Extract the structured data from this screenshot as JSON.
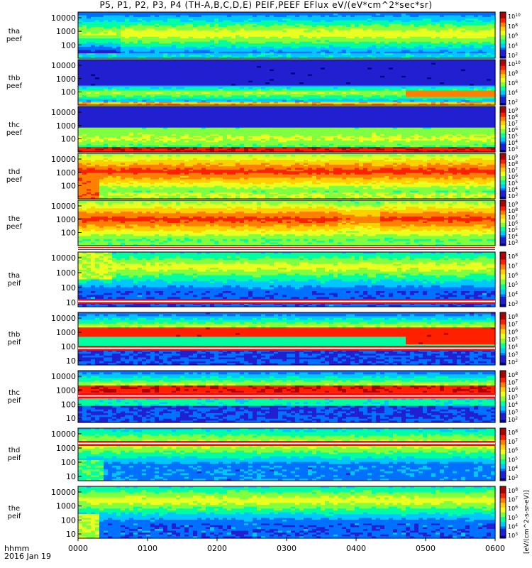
{
  "title": "P5, P1, P2, P3, P4 (TH-A,B,C,D,E) PEIF,PEEF EFlux eV/(eV*cm^2*sec*sr)",
  "footer": {
    "time_label": "hhmm",
    "date_label": "2016 Jan 19"
  },
  "colorbar_unit": "[eV/(cm^2-s-sr-eV)]",
  "chart_data": {
    "type": "heatmap",
    "x_ticks": [
      "0000",
      "0100",
      "0200",
      "0300",
      "0400",
      "0500",
      "0600"
    ],
    "xlim": [
      "00:00",
      "06:00"
    ],
    "panels": [
      {
        "label": [
          "tha",
          "peef"
        ],
        "y_ticks": [
          "10000",
          "1000",
          "100"
        ],
        "cbar_ticks": [
          "10^10",
          "10^8",
          "10^6",
          "10^4",
          "10^2"
        ]
      },
      {
        "label": [
          "thb",
          "peef"
        ],
        "y_ticks": [
          "10000",
          "1000",
          "100"
        ],
        "cbar_ticks": [
          "10^10",
          "10^8",
          "10^6",
          "10^4",
          "10^2"
        ]
      },
      {
        "label": [
          "thc",
          "peef"
        ],
        "y_ticks": [
          "10000",
          "1000",
          "100"
        ],
        "cbar_ticks": [
          "10^9",
          "10^8",
          "10^7",
          "10^6",
          "10^5",
          "10^4",
          "10^3"
        ]
      },
      {
        "label": [
          "thd",
          "peef"
        ],
        "y_ticks": [
          "10000",
          "1000",
          "100"
        ],
        "cbar_ticks": [
          "10^9",
          "10^8",
          "10^7",
          "10^6",
          "10^5",
          "10^4",
          "10^3"
        ]
      },
      {
        "label": [
          "the",
          "peef"
        ],
        "y_ticks": [
          "10000",
          "1000",
          "100"
        ],
        "cbar_ticks": [
          "10^9",
          "10^8",
          "10^7",
          "10^6",
          "10^5",
          "10^4",
          "10^3"
        ]
      },
      {
        "label": [
          "tha",
          "peif"
        ],
        "y_ticks": [
          "10000",
          "1000",
          "100",
          "10"
        ],
        "cbar_ticks": [
          "10^8",
          "10^7",
          "10^6",
          "10^5",
          "10^4",
          "10^3"
        ]
      },
      {
        "label": [
          "thb",
          "peif"
        ],
        "y_ticks": [
          "10000",
          "1000",
          "100",
          "10"
        ],
        "cbar_ticks": [
          "10^8",
          "10^7",
          "10^6",
          "10^5",
          "10^4",
          "10^3",
          "10^2"
        ]
      },
      {
        "label": [
          "thc",
          "peif"
        ],
        "y_ticks": [
          "10000",
          "1000",
          "100",
          "10"
        ],
        "cbar_ticks": [
          "10^8",
          "10^7",
          "10^6",
          "10^5",
          "10^4",
          "10^3",
          "10^2"
        ]
      },
      {
        "label": [
          "thd",
          "peif"
        ],
        "y_ticks": [
          "10000",
          "1000",
          "100",
          "10"
        ],
        "cbar_ticks": [
          "10^8",
          "10^7",
          "10^6",
          "10^5",
          "10^4",
          "10^3"
        ]
      },
      {
        "label": [
          "the",
          "peif"
        ],
        "y_ticks": [
          "10000",
          "1000",
          "100",
          "10"
        ],
        "cbar_ticks": [
          "10^8",
          "10^7",
          "10^6",
          "10^5",
          "10^4",
          "10^3"
        ]
      }
    ],
    "colormap": [
      "#000080",
      "#2020d0",
      "#0070ff",
      "#00c8ff",
      "#00ffa0",
      "#80ff40",
      "#e8ff20",
      "#ffd000",
      "#ff8000",
      "#ff2000",
      "#b00000"
    ]
  }
}
